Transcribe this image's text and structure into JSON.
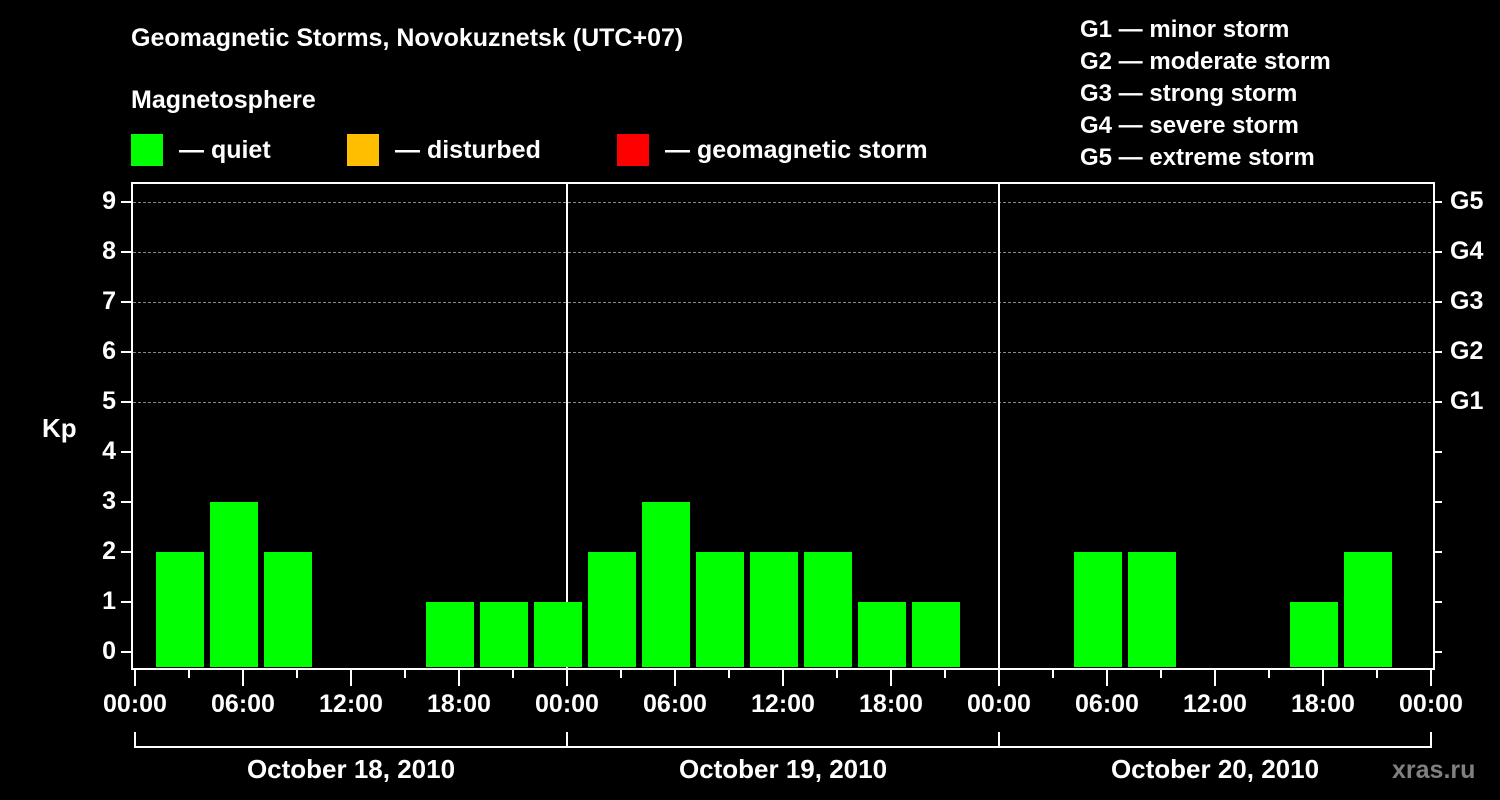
{
  "title": "Geomagnetic Storms, Novokuznetsk (UTC+07)",
  "subtitle": "Magnetosphere",
  "legend": [
    {
      "label": "— quiet",
      "color": "#00ff00"
    },
    {
      "label": "— disturbed",
      "color": "#ffbf00"
    },
    {
      "label": "— geomagnetic storm",
      "color": "#ff0000"
    }
  ],
  "storm_levels": [
    "G1 — minor storm",
    "G2 — moderate storm",
    "G3 — strong storm",
    "G4 — severe storm",
    "G5 — extreme storm"
  ],
  "watermark": "xras.ru",
  "chart_data": {
    "type": "bar",
    "title": "Geomagnetic Storms, Novokuznetsk (UTC+07)",
    "ylabel": "Kp",
    "xlabel": "",
    "ylim": [
      0,
      9
    ],
    "yticks": [
      "0",
      "1",
      "2",
      "3",
      "4",
      "5",
      "6",
      "7",
      "8",
      "9"
    ],
    "right_axis_labels": {
      "5": "G1",
      "6": "G2",
      "7": "G3",
      "8": "G4",
      "9": "G5"
    },
    "xtick_labels": [
      "00:00",
      "06:00",
      "12:00",
      "18:00",
      "00:00",
      "06:00",
      "12:00",
      "18:00",
      "00:00",
      "06:00",
      "12:00",
      "18:00",
      "00:00"
    ],
    "days": [
      "October 18, 2010",
      "October 19, 2010",
      "October 20, 2010"
    ],
    "interval_hours": 3,
    "grid": "dashed horizontal at Kp 5–9",
    "series": [
      {
        "name": "October 18, 2010",
        "values": [
          2,
          3,
          2,
          0,
          0,
          1,
          1,
          1
        ]
      },
      {
        "name": "October 19, 2010",
        "values": [
          2,
          3,
          2,
          2,
          2,
          1,
          1,
          0
        ]
      },
      {
        "name": "October 20, 2010",
        "values": [
          0,
          2,
          2,
          0,
          0,
          1,
          2,
          0
        ]
      }
    ],
    "bar_color": "#00ff00"
  }
}
